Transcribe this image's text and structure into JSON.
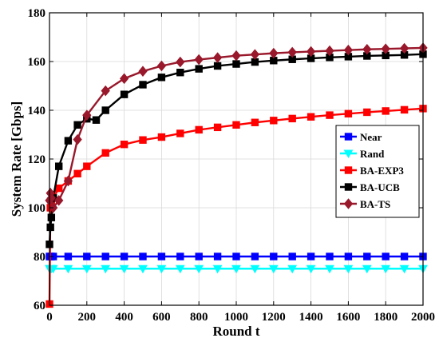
{
  "chart_data": {
    "type": "line",
    "xlabel": "Round t",
    "ylabel": "System Rate [Gbps]",
    "xlim": [
      0,
      2000
    ],
    "ylim": [
      60,
      180
    ],
    "xticks": [
      0,
      200,
      400,
      600,
      800,
      1000,
      1200,
      1400,
      1600,
      1800,
      2000
    ],
    "yticks": [
      60,
      80,
      100,
      120,
      140,
      160,
      180
    ],
    "grid": true,
    "legend_position": "right-middle",
    "series": [
      {
        "name": "Near",
        "color": "#0000ff",
        "marker": "square",
        "x": [
          0,
          5,
          10,
          20,
          100,
          200,
          300,
          400,
          500,
          600,
          700,
          800,
          900,
          1000,
          1100,
          1200,
          1300,
          1400,
          1500,
          1600,
          1700,
          1800,
          1900,
          2000
        ],
        "y": [
          80,
          80,
          80,
          80,
          80,
          80,
          80,
          80,
          80,
          80,
          80,
          80,
          80,
          80,
          80,
          80,
          80,
          80,
          80,
          80,
          80,
          80,
          80,
          80
        ]
      },
      {
        "name": "Rand",
        "color": "#00ffff",
        "marker": "triangle-down",
        "x": [
          0,
          5,
          10,
          20,
          100,
          200,
          300,
          400,
          500,
          600,
          700,
          800,
          900,
          1000,
          1100,
          1200,
          1300,
          1400,
          1500,
          1600,
          1700,
          1800,
          1900,
          2000
        ],
        "y": [
          75,
          75,
          75,
          75,
          75,
          75,
          75,
          75,
          75,
          75,
          75,
          75,
          75,
          75,
          75,
          75,
          75,
          75,
          75,
          75,
          75,
          75,
          75,
          75
        ]
      },
      {
        "name": "BA-EXP3",
        "color": "#ff0000",
        "marker": "square",
        "x": [
          0,
          5,
          10,
          20,
          50,
          100,
          150,
          200,
          300,
          400,
          500,
          600,
          700,
          800,
          900,
          1000,
          1100,
          1200,
          1300,
          1400,
          1500,
          1600,
          1700,
          1800,
          1900,
          2000
        ],
        "y": [
          60.5,
          100,
          102,
          104,
          108,
          111,
          114,
          117,
          122.5,
          126,
          127.8,
          129,
          130.5,
          132,
          133,
          134,
          135,
          135.8,
          136.6,
          137.3,
          138,
          138.6,
          139.2,
          139.7,
          140.2,
          140.7
        ]
      },
      {
        "name": "BA-UCB",
        "color": "#000000",
        "marker": "square",
        "x": [
          0,
          5,
          10,
          20,
          50,
          100,
          150,
          200,
          250,
          300,
          400,
          500,
          600,
          700,
          800,
          900,
          1000,
          1100,
          1200,
          1300,
          1400,
          1500,
          1600,
          1700,
          1800,
          1900,
          2000
        ],
        "y": [
          85,
          92,
          96,
          104,
          117,
          127.5,
          134,
          136.5,
          136,
          140,
          146.5,
          150.5,
          153.5,
          155.5,
          157,
          158.2,
          159,
          159.8,
          160.4,
          160.9,
          161.3,
          161.7,
          162,
          162.3,
          162.5,
          162.7,
          163
        ]
      },
      {
        "name": "BA-TS",
        "color": "#99182b",
        "marker": "diamond",
        "x": [
          0,
          5,
          10,
          20,
          50,
          100,
          150,
          200,
          300,
          400,
          500,
          600,
          700,
          800,
          900,
          1000,
          1100,
          1200,
          1300,
          1400,
          1500,
          1600,
          1700,
          1800,
          1900,
          2000
        ],
        "y": [
          103,
          106,
          104,
          100,
          103,
          111,
          128,
          138,
          148,
          153,
          156,
          158.2,
          159.8,
          160.8,
          161.6,
          162.4,
          162.9,
          163.4,
          163.8,
          164.1,
          164.4,
          164.7,
          165,
          165.2,
          165.4,
          165.6
        ]
      }
    ]
  }
}
